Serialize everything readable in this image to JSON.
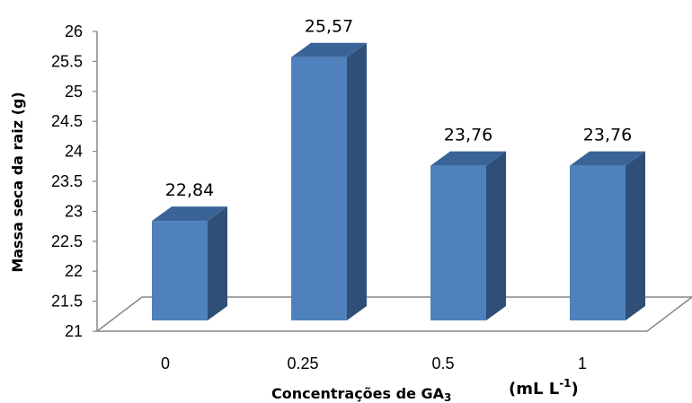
{
  "chart_data": {
    "type": "bar",
    "style": "3d-column",
    "categories": [
      "0",
      "0.25",
      "0.5",
      "1"
    ],
    "values": [
      22.84,
      25.57,
      23.76,
      23.76
    ],
    "data_labels": [
      "22,84",
      "25,57",
      "23,76",
      "23,76"
    ],
    "title": "",
    "xlabel_main": "Concentrações de  GA",
    "xlabel_subscript": "3",
    "xlabel_unit_prefix": "(mL L",
    "xlabel_unit_exponent": "-1",
    "xlabel_unit_suffix": ")",
    "ylabel": "Massa seca da raiz (g)",
    "ylim": [
      21,
      26
    ],
    "yticks": [
      "21",
      "21.5",
      "22",
      "22.5",
      "23",
      "23.5",
      "24",
      "24.5",
      "25",
      "25.5",
      "26"
    ],
    "ytick_values": [
      21,
      21.5,
      22,
      22.5,
      23,
      23.5,
      24,
      24.5,
      25,
      25.5,
      26
    ],
    "grid": false,
    "legend": "none",
    "colors": {
      "bar_front": "#4f81bd",
      "bar_side": "#2f4e78",
      "bar_top": "#3a6497",
      "axis": "#868686",
      "floor_fill": "#ffffff"
    }
  }
}
